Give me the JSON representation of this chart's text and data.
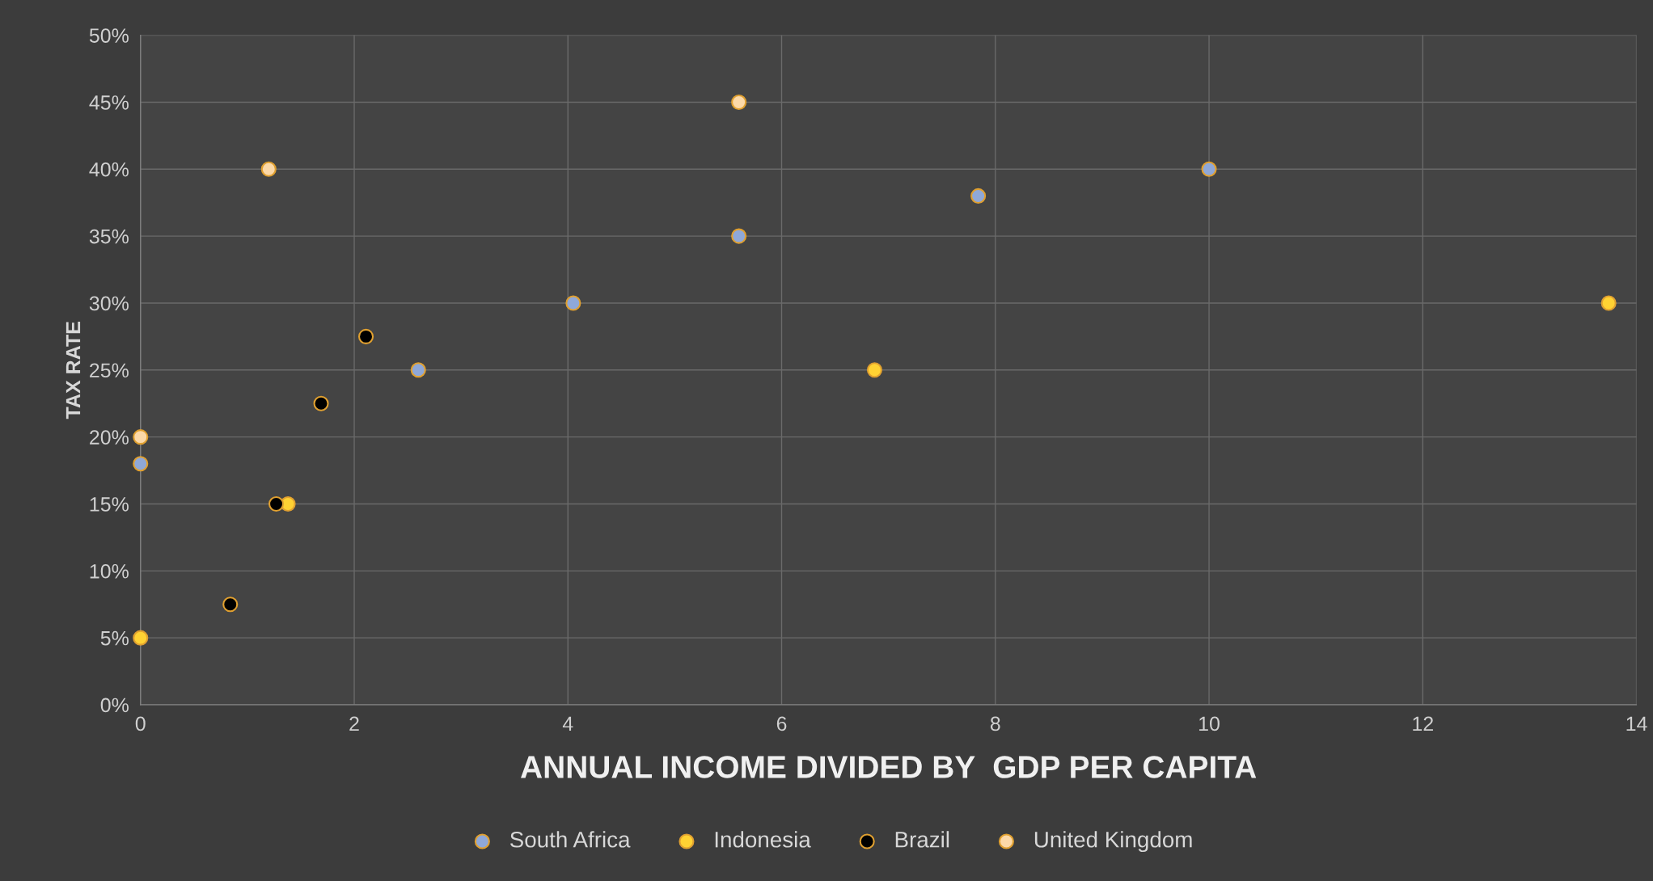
{
  "chart_data": {
    "type": "scatter",
    "xlabel": "ANNUAL INCOME DIVIDED BY  GDP PER CAPITA",
    "ylabel": "TAX RATE",
    "series": [
      {
        "name": "South Africa",
        "color": "#8fa8d8",
        "x": [
          0,
          2.6,
          4.05,
          5.6,
          7.84,
          10
        ],
        "values": [
          18,
          25,
          30,
          35,
          38,
          40
        ]
      },
      {
        "name": "Indonesia",
        "color": "#ffd233",
        "x": [
          0,
          1.38,
          6.87,
          13.74
        ],
        "values": [
          5,
          15,
          25,
          30
        ]
      },
      {
        "name": "Brazil",
        "color": "#000000",
        "x": [
          0.84,
          1.27,
          1.69,
          2.11
        ],
        "values": [
          7.5,
          15,
          22.5,
          27.5
        ]
      },
      {
        "name": "United Kingdom",
        "color": "#fcd9a8",
        "x": [
          0,
          1.2,
          5.6
        ],
        "values": [
          20,
          40,
          45
        ]
      }
    ],
    "xlim": [
      0,
      14
    ],
    "xticks": [
      0,
      2,
      4,
      6,
      8,
      10,
      12,
      14
    ],
    "ylim": [
      0,
      50
    ],
    "yticks": [
      {
        "value": 0,
        "label": "0%"
      },
      {
        "value": 5,
        "label": "5%"
      },
      {
        "value": 10,
        "label": "10%"
      },
      {
        "value": 15,
        "label": "15%"
      },
      {
        "value": 20,
        "label": "20%"
      },
      {
        "value": 25,
        "label": "25%"
      },
      {
        "value": 30,
        "label": "30%"
      },
      {
        "value": 35,
        "label": "35%"
      },
      {
        "value": 40,
        "label": "40%"
      },
      {
        "value": 45,
        "label": "45%"
      },
      {
        "value": 50,
        "label": "50%"
      }
    ],
    "grid": true,
    "legend": "bottom",
    "marker": "circle"
  }
}
